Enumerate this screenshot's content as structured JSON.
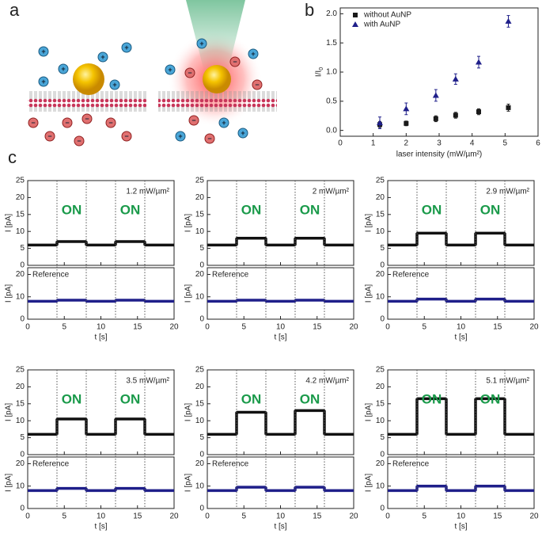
{
  "panel_labels": [
    "a",
    "b",
    "c"
  ],
  "ion_labels": {
    "positive": "+",
    "negative": "−"
  },
  "chart_data": [
    {
      "type": "scatter",
      "ylabel": "I/I",
      "ylabel_sub": "0",
      "xlabel": "laser intensity (mW/µm²)",
      "xlim": [
        0,
        6
      ],
      "xticks": [
        0,
        1,
        2,
        3,
        4,
        5,
        6
      ],
      "ylim": [
        -0.1,
        2.1
      ],
      "yticks": [
        {
          "value": 0,
          "label": "0.0"
        },
        0.5,
        {
          "value": 1,
          "label": "1.0"
        },
        1.5,
        {
          "value": 2,
          "label": "2.0"
        }
      ],
      "legend": "upper left",
      "series": [
        {
          "name": "without AuNP",
          "color": "#1a1a1a",
          "marker": "square",
          "x": [
            1.2,
            2,
            2.9,
            3.5,
            4.2,
            5.1
          ],
          "values": [
            0.1,
            0.12,
            0.2,
            0.26,
            0.32,
            0.39
          ],
          "errors": [
            0.05,
            0.04,
            0.05,
            0.05,
            0.05,
            0.06
          ]
        },
        {
          "name": "with AuNP",
          "color": "#1f1f8a",
          "marker": "triangle",
          "x": [
            1.2,
            2,
            2.9,
            3.5,
            4.2,
            5.1
          ],
          "values": [
            0.13,
            0.37,
            0.6,
            0.88,
            1.17,
            1.87
          ],
          "errors": [
            0.1,
            0.1,
            0.1,
            0.09,
            0.1,
            0.1
          ]
        }
      ]
    },
    {
      "type": "trace",
      "title": "1.2 mW/µm²",
      "annotations": [
        "ON",
        "ON"
      ],
      "x": [
        0,
        4,
        4,
        8,
        8,
        12,
        12,
        16,
        16,
        20
      ],
      "values": [
        6,
        6,
        7,
        7,
        6,
        6,
        7,
        7,
        6,
        6
      ],
      "color": "#111111",
      "xlim": [
        0,
        20
      ],
      "xticks": [
        0,
        5,
        10,
        15,
        20
      ],
      "xlabel": "t [s]",
      "ylim": [
        0,
        25
      ],
      "yticks": [
        0,
        5,
        10,
        15,
        20,
        25
      ],
      "ylabel": "I [pA]",
      "switch_times": [
        4,
        8,
        12,
        16
      ],
      "reference": {
        "label": "Reference",
        "values": [
          8,
          8,
          8.5,
          8.5,
          8,
          8,
          8.5,
          8.5,
          8,
          8
        ],
        "color": "#1f1f8a",
        "ylim": [
          0,
          23
        ],
        "yticks": [
          0,
          10,
          20
        ],
        "ylabel": "I [pA]"
      }
    },
    {
      "type": "trace",
      "title": "2 mW/µm²",
      "annotations": [
        "ON",
        "ON"
      ],
      "x": [
        0,
        4,
        4,
        8,
        8,
        12,
        12,
        16,
        16,
        20
      ],
      "values": [
        6,
        6,
        8,
        8,
        6,
        6,
        8,
        8,
        6,
        6
      ],
      "color": "#111111",
      "xlim": [
        0,
        20
      ],
      "xticks": [
        0,
        5,
        10,
        15,
        20
      ],
      "xlabel": "t [s]",
      "ylim": [
        0,
        25
      ],
      "yticks": [
        0,
        5,
        10,
        15,
        20,
        25
      ],
      "ylabel": "I [pA]",
      "switch_times": [
        4,
        8,
        12,
        16
      ],
      "reference": {
        "label": "Reference",
        "values": [
          8,
          8,
          8.5,
          8.5,
          8,
          8,
          8.5,
          8.5,
          8,
          8
        ],
        "color": "#1f1f8a",
        "ylim": [
          0,
          23
        ],
        "yticks": [
          0,
          10,
          20
        ],
        "ylabel": "I [pA]"
      }
    },
    {
      "type": "trace",
      "title": "2.9 mW/µm²",
      "annotations": [
        "ON",
        "ON"
      ],
      "x": [
        0,
        4,
        4,
        8,
        8,
        12,
        12,
        16,
        16,
        20
      ],
      "values": [
        6,
        6,
        9.5,
        9.5,
        6,
        6,
        9.5,
        9.5,
        6,
        6
      ],
      "color": "#111111",
      "xlim": [
        0,
        20
      ],
      "xticks": [
        0,
        5,
        10,
        15,
        20
      ],
      "xlabel": "t [s]",
      "ylim": [
        0,
        25
      ],
      "yticks": [
        0,
        5,
        10,
        15,
        20,
        25
      ],
      "ylabel": "I [pA]",
      "switch_times": [
        4,
        8,
        12,
        16
      ],
      "reference": {
        "label": "Reference",
        "values": [
          8,
          8,
          9,
          9,
          8,
          8,
          9,
          9,
          8,
          8
        ],
        "color": "#1f1f8a",
        "ylim": [
          0,
          23
        ],
        "yticks": [
          0,
          10,
          20
        ],
        "ylabel": "I [pA]"
      }
    },
    {
      "type": "trace",
      "title": "3.5 mW/µm²",
      "annotations": [
        "ON",
        "ON"
      ],
      "x": [
        0,
        4,
        4,
        8,
        8,
        12,
        12,
        16,
        16,
        20
      ],
      "values": [
        6,
        6,
        10.5,
        10.5,
        6,
        6,
        10.5,
        10.5,
        6,
        6
      ],
      "color": "#111111",
      "xlim": [
        0,
        20
      ],
      "xticks": [
        0,
        5,
        10,
        15,
        20
      ],
      "xlabel": "t [s]",
      "ylim": [
        0,
        25
      ],
      "yticks": [
        0,
        5,
        10,
        15,
        20,
        25
      ],
      "ylabel": "I [pA]",
      "switch_times": [
        4,
        8,
        12,
        16
      ],
      "reference": {
        "label": "Reference",
        "values": [
          8,
          8,
          9,
          9,
          8,
          8,
          9,
          9,
          8,
          8
        ],
        "color": "#1f1f8a",
        "ylim": [
          0,
          23
        ],
        "yticks": [
          0,
          10,
          20
        ],
        "ylabel": "I [pA]"
      }
    },
    {
      "type": "trace",
      "title": "4.2 mW/µm²",
      "annotations": [
        "ON",
        "ON"
      ],
      "x": [
        0,
        4,
        4,
        8,
        8,
        12,
        12,
        16,
        16,
        20
      ],
      "values": [
        6,
        6,
        12.5,
        12.5,
        6,
        6,
        13,
        13,
        6,
        6
      ],
      "color": "#111111",
      "xlim": [
        0,
        20
      ],
      "xticks": [
        0,
        5,
        10,
        15,
        20
      ],
      "xlabel": "t [s]",
      "ylim": [
        0,
        25
      ],
      "yticks": [
        0,
        5,
        10,
        15,
        20,
        25
      ],
      "ylabel": "I [pA]",
      "switch_times": [
        4,
        8,
        12,
        16
      ],
      "reference": {
        "label": "Reference",
        "values": [
          8,
          8,
          9.5,
          9.5,
          8,
          8,
          9.5,
          9.5,
          8,
          8
        ],
        "color": "#1f1f8a",
        "ylim": [
          0,
          23
        ],
        "yticks": [
          0,
          10,
          20
        ],
        "ylabel": "I [pA]"
      }
    },
    {
      "type": "trace",
      "title": "5.1 mW/µm²",
      "annotations": [
        "ON",
        "ON"
      ],
      "x": [
        0,
        4,
        4,
        8,
        8,
        12,
        12,
        16,
        16,
        20
      ],
      "values": [
        6,
        6,
        16.5,
        16.5,
        6,
        6,
        16.5,
        16.5,
        6,
        6
      ],
      "color": "#111111",
      "xlim": [
        0,
        20
      ],
      "xticks": [
        0,
        5,
        10,
        15,
        20
      ],
      "xlabel": "t [s]",
      "ylim": [
        0,
        25
      ],
      "yticks": [
        0,
        5,
        10,
        15,
        20,
        25
      ],
      "ylabel": "I [pA]",
      "switch_times": [
        4,
        8,
        12,
        16
      ],
      "reference": {
        "label": "Reference",
        "values": [
          8,
          8,
          10,
          10,
          8,
          8,
          10,
          10,
          8,
          8
        ],
        "color": "#1f1f8a",
        "ylim": [
          0,
          23
        ],
        "yticks": [
          0,
          10,
          20
        ],
        "ylabel": "I [pA]"
      }
    }
  ]
}
